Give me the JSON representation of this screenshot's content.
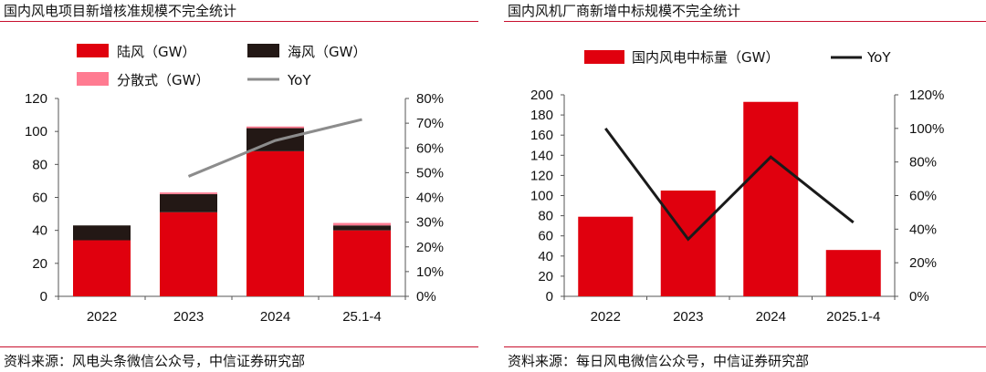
{
  "colors": {
    "land": "#e0000e",
    "offshore": "#231815",
    "distributed": "#ff7b91",
    "yoy_gray": "#8c8c8c",
    "yoy_black": "#1a1a1a",
    "rule": "#c8102e"
  },
  "left": {
    "title": "国内风电项目新增核准规模不完全统计",
    "source": "资料来源：风电头条微信公众号，中信证券研究部"
  },
  "right": {
    "title": "国内风机厂商新增中标规模不完全统计",
    "source": "资料来源：每日风电微信公众号，中信证券研究部"
  },
  "chart_data": [
    {
      "type": "bar",
      "stacked": true,
      "title": "国内风电项目新增核准规模不完全统计",
      "categories": [
        "2022",
        "2023",
        "2024",
        "25.1-4"
      ],
      "series": [
        {
          "name": "陆风（GW）",
          "values": [
            34,
            51,
            88,
            40
          ]
        },
        {
          "name": "海风（GW）",
          "values": [
            9,
            11,
            14,
            3
          ]
        },
        {
          "name": "分散式（GW）",
          "values": [
            0,
            1,
            1,
            1.5
          ]
        }
      ],
      "line": {
        "name": "YoY",
        "axis": "right",
        "values": [
          null,
          48.5,
          63,
          71.5
        ]
      },
      "ylim": [
        0,
        120
      ],
      "y_ticks": [
        "0",
        "20",
        "40",
        "60",
        "80",
        "100",
        "120"
      ],
      "y2lim": [
        0,
        80
      ],
      "y2_ticks": [
        "0%",
        "10%",
        "20%",
        "30%",
        "40%",
        "50%",
        "60%",
        "70%",
        "80%"
      ],
      "legend_position": "top-left"
    },
    {
      "type": "bar",
      "title": "国内风机厂商新增中标规模不完全统计",
      "categories": [
        "2022",
        "2023",
        "2024",
        "2025.1-4"
      ],
      "series": [
        {
          "name": "国内风电中标量（GW）",
          "values": [
            79,
            105,
            193,
            46
          ]
        }
      ],
      "line": {
        "name": "YoY",
        "axis": "right",
        "values": [
          100,
          34,
          83,
          44
        ]
      },
      "ylim": [
        0,
        200
      ],
      "y_ticks": [
        "0",
        "20",
        "40",
        "60",
        "80",
        "100",
        "120",
        "140",
        "160",
        "180",
        "200"
      ],
      "y2lim": [
        0,
        120
      ],
      "y2_ticks": [
        "0%",
        "20%",
        "40%",
        "60%",
        "80%",
        "100%",
        "120%"
      ],
      "legend_position": "top"
    }
  ]
}
